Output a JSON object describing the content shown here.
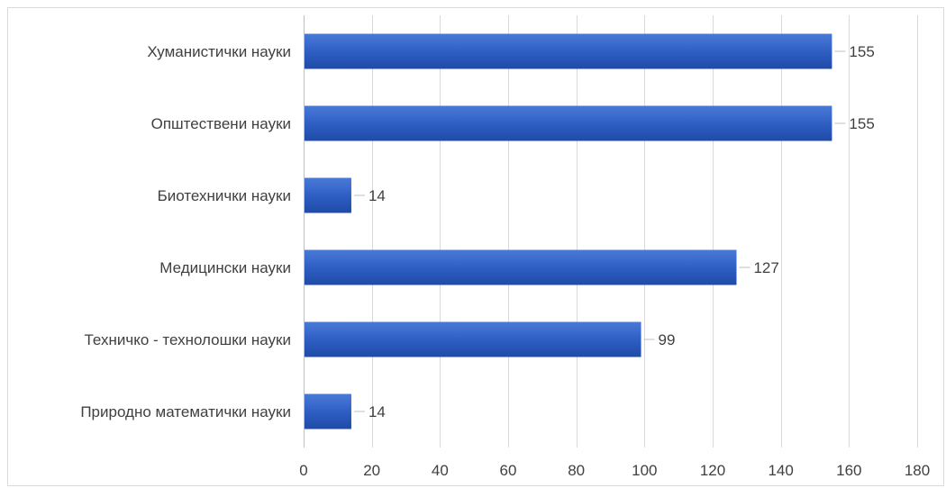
{
  "chart_data": {
    "type": "bar",
    "orientation": "horizontal",
    "categories": [
      "Хуманистички науки",
      "Општествени науки",
      "Биотехнички науки",
      "Медицински науки",
      "Техничко - технолошки науки",
      "Природно математички науки"
    ],
    "values": [
      155,
      155,
      14,
      127,
      99,
      14
    ],
    "data_labels": [
      "155",
      "155",
      "14",
      "127",
      "99",
      "14"
    ],
    "xlim": [
      0,
      180
    ],
    "xticks": [
      0,
      20,
      40,
      60,
      80,
      100,
      120,
      140,
      160,
      180
    ],
    "xtick_labels": [
      "0",
      "20",
      "40",
      "60",
      "80",
      "100",
      "120",
      "140",
      "160",
      "180"
    ],
    "grid": true,
    "legend": "none",
    "bar_color": "#2f5fc4",
    "bar_color_light": "#4a7ad6",
    "bar_color_dark": "#1f4aa8"
  }
}
